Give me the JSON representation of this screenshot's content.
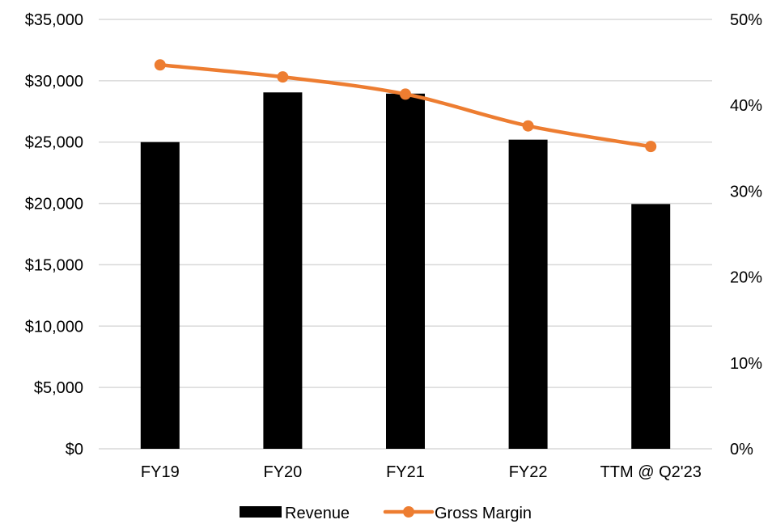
{
  "chart_data": {
    "type": "bar",
    "categories": [
      "FY19",
      "FY20",
      "FY21",
      "FY22",
      "TTM @ Q2'23"
    ],
    "series": [
      {
        "name": "Revenue",
        "type": "bar",
        "axis": "left",
        "color": "#000000",
        "values": [
          25000,
          29050,
          28950,
          25200,
          19950
        ]
      },
      {
        "name": "Gross Margin",
        "type": "line",
        "axis": "right",
        "color": "#ED7D31",
        "marker": "circle",
        "values": [
          0.447,
          0.433,
          0.413,
          0.376,
          0.352
        ]
      }
    ],
    "y_left": {
      "ylim": [
        0,
        35000
      ],
      "ticks": [
        0,
        5000,
        10000,
        15000,
        20000,
        25000,
        30000,
        35000
      ],
      "tick_labels": [
        "$0",
        "$5,000",
        "$10,000",
        "$15,000",
        "$20,000",
        "$25,000",
        "$30,000",
        "$35,000"
      ]
    },
    "y_right": {
      "ylim": [
        0,
        0.5
      ],
      "ticks": [
        0,
        0.1,
        0.2,
        0.3,
        0.4,
        0.5
      ],
      "tick_labels": [
        "0%",
        "10%",
        "20%",
        "30%",
        "40%",
        "50%"
      ]
    },
    "grid": true,
    "grid_color": "#D9D9D9",
    "legend": {
      "position": "bottom",
      "entries": [
        {
          "label": "Revenue",
          "style": "bar",
          "color": "#000000"
        },
        {
          "label": "Gross Margin",
          "style": "line-marker",
          "color": "#ED7D31"
        }
      ]
    },
    "title": "",
    "xlabel": "",
    "ylabel": ""
  }
}
